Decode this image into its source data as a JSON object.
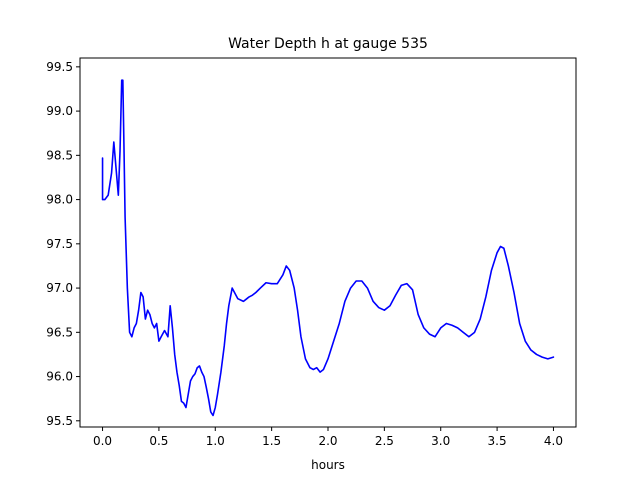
{
  "chart_data": {
    "type": "line",
    "title": "Water Depth h at gauge 535",
    "xlabel": "hours",
    "ylabel": "",
    "xlim": [
      -0.2,
      4.2
    ],
    "ylim": [
      95.43,
      99.6
    ],
    "xticks": [
      0.0,
      0.5,
      1.0,
      1.5,
      2.0,
      2.5,
      3.0,
      3.5,
      4.0
    ],
    "xtick_labels": [
      "0.0",
      "0.5",
      "1.0",
      "1.5",
      "2.0",
      "2.5",
      "3.0",
      "3.5",
      "4.0"
    ],
    "yticks": [
      95.5,
      96.0,
      96.5,
      97.0,
      97.5,
      98.0,
      98.5,
      99.0,
      99.5
    ],
    "ytick_labels": [
      "95.5",
      "96.0",
      "96.5",
      "97.0",
      "97.5",
      "98.0",
      "98.5",
      "99.0",
      "99.5"
    ],
    "grid": false,
    "legend": false,
    "series": [
      {
        "color": "#0000ff",
        "x": [
          0.0,
          0.0,
          0.02,
          0.05,
          0.08,
          0.1,
          0.12,
          0.14,
          0.155,
          0.17,
          0.18,
          0.19,
          0.2,
          0.22,
          0.24,
          0.26,
          0.28,
          0.3,
          0.32,
          0.34,
          0.36,
          0.38,
          0.4,
          0.42,
          0.44,
          0.46,
          0.48,
          0.5,
          0.52,
          0.55,
          0.58,
          0.6,
          0.62,
          0.64,
          0.66,
          0.68,
          0.7,
          0.72,
          0.74,
          0.76,
          0.78,
          0.8,
          0.82,
          0.84,
          0.86,
          0.88,
          0.9,
          0.92,
          0.94,
          0.96,
          0.98,
          1.0,
          1.02,
          1.05,
          1.08,
          1.1,
          1.12,
          1.15,
          1.2,
          1.25,
          1.28,
          1.3,
          1.33,
          1.36,
          1.4,
          1.45,
          1.5,
          1.55,
          1.6,
          1.63,
          1.66,
          1.7,
          1.73,
          1.76,
          1.8,
          1.84,
          1.87,
          1.9,
          1.93,
          1.96,
          2.0,
          2.05,
          2.1,
          2.15,
          2.2,
          2.25,
          2.3,
          2.35,
          2.4,
          2.45,
          2.5,
          2.55,
          2.6,
          2.65,
          2.7,
          2.75,
          2.8,
          2.85,
          2.9,
          2.95,
          3.0,
          3.05,
          3.1,
          3.15,
          3.2,
          3.25,
          3.3,
          3.35,
          3.4,
          3.45,
          3.5,
          3.53,
          3.56,
          3.6,
          3.65,
          3.7,
          3.75,
          3.8,
          3.85,
          3.9,
          3.95,
          4.0
        ],
        "y": [
          98.47,
          98.0,
          98.0,
          98.05,
          98.3,
          98.65,
          98.35,
          98.05,
          98.55,
          99.35,
          99.35,
          98.6,
          97.8,
          97.0,
          96.5,
          96.45,
          96.55,
          96.6,
          96.75,
          96.95,
          96.9,
          96.65,
          96.75,
          96.7,
          96.6,
          96.55,
          96.6,
          96.4,
          96.45,
          96.52,
          96.45,
          96.8,
          96.55,
          96.25,
          96.05,
          95.9,
          95.72,
          95.7,
          95.65,
          95.8,
          95.95,
          96.0,
          96.03,
          96.1,
          96.12,
          96.05,
          96.0,
          95.88,
          95.75,
          95.6,
          95.56,
          95.65,
          95.8,
          96.05,
          96.35,
          96.6,
          96.8,
          97.0,
          96.88,
          96.85,
          96.88,
          96.9,
          96.92,
          96.95,
          97.0,
          97.06,
          97.05,
          97.05,
          97.15,
          97.25,
          97.2,
          97.0,
          96.75,
          96.45,
          96.2,
          96.1,
          96.08,
          96.1,
          96.05,
          96.08,
          96.2,
          96.4,
          96.6,
          96.85,
          97.0,
          97.08,
          97.08,
          97.0,
          96.85,
          96.78,
          96.75,
          96.8,
          96.92,
          97.03,
          97.05,
          96.98,
          96.7,
          96.55,
          96.48,
          96.45,
          96.55,
          96.6,
          96.58,
          96.55,
          96.5,
          96.45,
          96.5,
          96.65,
          96.9,
          97.2,
          97.4,
          97.47,
          97.45,
          97.25,
          96.95,
          96.6,
          96.4,
          96.3,
          96.25,
          96.22,
          96.2,
          96.22
        ]
      }
    ]
  }
}
